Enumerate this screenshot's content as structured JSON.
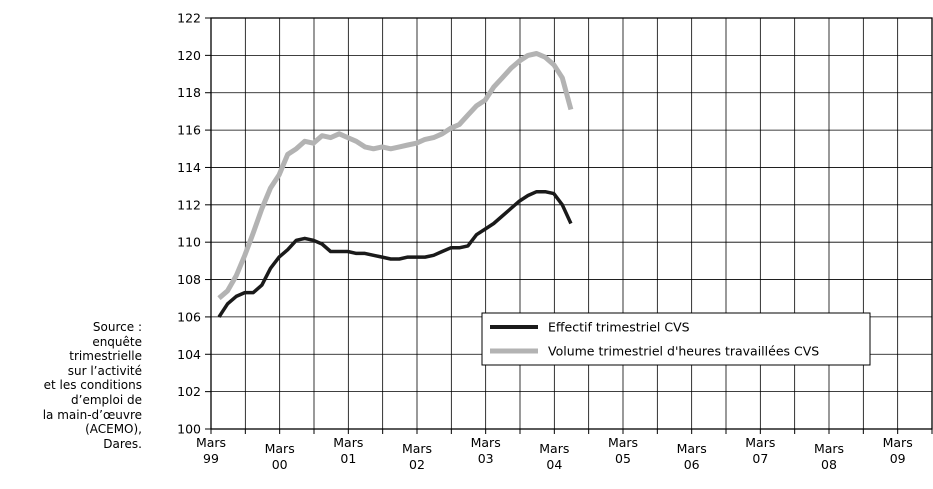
{
  "source_lines": [
    "Source :",
    "enquête",
    "trimestrielle",
    "sur l’activité",
    "et les conditions",
    "d’emploi de",
    "la main-d’œuvre",
    "(ACEMO),",
    "Dares."
  ],
  "chart_data": {
    "type": "line",
    "title": "",
    "xlabel": "",
    "ylabel": "",
    "ylim": [
      100,
      122
    ],
    "yticks": [
      100,
      102,
      104,
      106,
      108,
      110,
      112,
      114,
      116,
      118,
      120,
      122
    ],
    "x_tick_labels": [
      [
        "Mars",
        "99"
      ],
      [
        "Mars",
        "00"
      ],
      [
        "Mars",
        "01"
      ],
      [
        "Mars",
        "02"
      ],
      [
        "Mars",
        "03"
      ],
      [
        "Mars",
        "04"
      ],
      [
        "Mars",
        "05"
      ],
      [
        "Mars",
        "06"
      ],
      [
        "Mars",
        "07"
      ],
      [
        "Mars",
        "08"
      ],
      [
        "Mars",
        "09"
      ]
    ],
    "grid": true,
    "legend_position": "center-right",
    "series": [
      {
        "name": "Effectif trimestriel CVS",
        "color": "#1a1a1a",
        "values": [
          106.0,
          106.7,
          107.1,
          107.3,
          107.3,
          107.7,
          108.6,
          109.2,
          109.6,
          110.1,
          110.2,
          110.1,
          109.9,
          109.5,
          109.5,
          109.5,
          109.4,
          109.4,
          109.3,
          109.2,
          109.1,
          109.1,
          109.2,
          109.2,
          109.2,
          109.3,
          109.5,
          109.7,
          109.7,
          109.8,
          110.4,
          110.7,
          111.0,
          111.4,
          111.8,
          112.2,
          112.5,
          112.7,
          112.7,
          112.6,
          112.0,
          111.0
        ]
      },
      {
        "name": "Volume trimestriel d'heures travaillées CVS",
        "color": "#b3b3b3",
        "values": [
          107.0,
          107.4,
          108.2,
          109.3,
          110.5,
          111.8,
          112.9,
          113.6,
          114.7,
          115.0,
          115.4,
          115.3,
          115.7,
          115.6,
          115.8,
          115.6,
          115.4,
          115.1,
          115.0,
          115.1,
          115.0,
          115.1,
          115.2,
          115.3,
          115.5,
          115.6,
          115.8,
          116.1,
          116.3,
          116.8,
          117.3,
          117.6,
          118.3,
          118.8,
          119.3,
          119.7,
          120.0,
          120.1,
          119.9,
          119.5,
          118.8,
          117.1
        ]
      }
    ]
  }
}
